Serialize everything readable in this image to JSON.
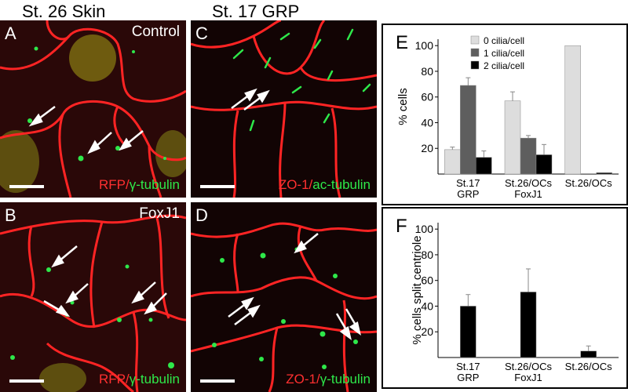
{
  "column_titles": {
    "left": "St. 26 Skin",
    "middle": "St. 17 GRP"
  },
  "panels": {
    "A": {
      "letter": "A",
      "condition": "Control",
      "stain1": "RFP",
      "sep": "/",
      "stain2": "γ-tubulin"
    },
    "B": {
      "letter": "B",
      "condition": "FoxJ1",
      "stain1": "RFP",
      "sep": "/",
      "stain2": "γ-tubulin"
    },
    "C": {
      "letter": "C",
      "condition": "",
      "stain1": "ZO-1",
      "sep": "/",
      "stain2": "ac-tubulin"
    },
    "D": {
      "letter": "D",
      "condition": "",
      "stain1": "ZO-1",
      "sep": "/",
      "stain2": "γ-tubulin"
    }
  },
  "colors": {
    "membrane_red": "#ff2424",
    "signal_green": "#2ee84a",
    "bar_light": "#dddddd",
    "bar_mid": "#5e5e5e",
    "bar_dark": "#000000"
  },
  "chart_data": [
    {
      "panel": "E",
      "type": "bar",
      "categories": [
        [
          "St.17",
          "GRP"
        ],
        [
          "St.26/OCs",
          "FoxJ1"
        ],
        [
          "St.26/OCs"
        ]
      ],
      "series": [
        {
          "name": "0 cilia/cell",
          "values": [
            19,
            57,
            100
          ],
          "errors": [
            2,
            7,
            0
          ],
          "color": "#dddddd"
        },
        {
          "name": "1 cilia/cell",
          "values": [
            69,
            28,
            0
          ],
          "errors": [
            6,
            2,
            0
          ],
          "color": "#5e5e5e"
        },
        {
          "name": "2 cilia/cell",
          "values": [
            13,
            15,
            1
          ],
          "errors": [
            5,
            8,
            0
          ],
          "color": "#000000"
        }
      ],
      "ylabel": "% cells",
      "yticks": [
        20,
        40,
        60,
        80,
        100
      ],
      "ylim": [
        0,
        105
      ],
      "legend": "top-center"
    },
    {
      "panel": "F",
      "type": "bar",
      "categories": [
        [
          "St.17",
          "GRP"
        ],
        [
          "St.26/OCs",
          "FoxJ1"
        ],
        [
          "St.26/OCs"
        ]
      ],
      "values": [
        40,
        51,
        5
      ],
      "errors": [
        9,
        18,
        4
      ],
      "ylabel": "% cells split centriole",
      "yticks": [
        20,
        40,
        60,
        80,
        100
      ],
      "ylim": [
        0,
        105
      ]
    }
  ]
}
